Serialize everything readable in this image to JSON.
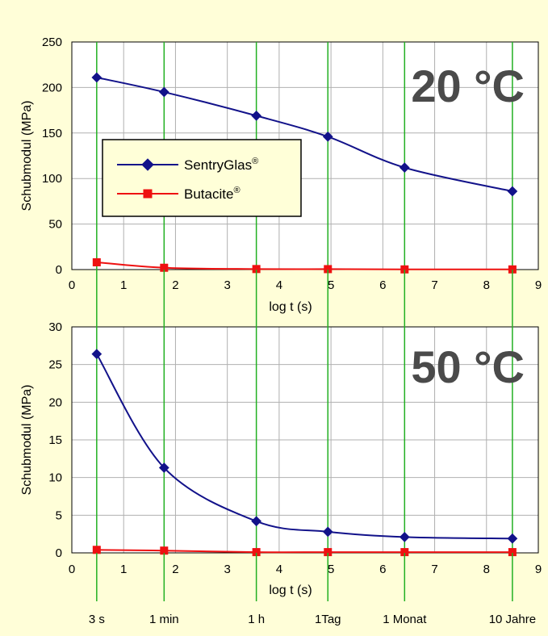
{
  "colors": {
    "background": "#fffed8",
    "plot_area": "#ffffff",
    "grid": "#b0b0b0",
    "time_markers": "#22b022",
    "sentryglas": "#12128a",
    "butacite": "#ee1111",
    "temperature_label": "#4a4a4a"
  },
  "legend": {
    "entries": [
      {
        "name": "SentryGlas",
        "sup": "®",
        "color": "#12128a",
        "marker": "diamond"
      },
      {
        "name": "Butacite",
        "sup": "®",
        "color": "#ee1111",
        "marker": "square"
      }
    ]
  },
  "time_markers": {
    "positions": [
      0.48,
      1.78,
      3.56,
      4.94,
      6.42,
      8.5
    ],
    "labels": [
      "3 s",
      "1 min",
      "1 h",
      "1Tag",
      "1 Monat",
      "10 Jahre"
    ]
  },
  "chart_data": [
    {
      "type": "line",
      "annotation": "20 °C",
      "xlabel": "log t (s)",
      "ylabel": "Schubmodul (MPa)",
      "xlim": [
        0,
        9
      ],
      "ylim": [
        0,
        250
      ],
      "xticks": [
        0,
        1,
        2,
        3,
        4,
        5,
        6,
        7,
        8,
        9
      ],
      "yticks": [
        0,
        50,
        100,
        150,
        200,
        250
      ],
      "grid": true,
      "legend_position": "center-left",
      "series": [
        {
          "name": "SentryGlas®",
          "marker": "diamond",
          "color": "#12128a",
          "x": [
            0.48,
            1.78,
            3.56,
            4.94,
            6.42,
            8.5
          ],
          "y": [
            211,
            195,
            169,
            146,
            112,
            86
          ]
        },
        {
          "name": "Butacite®",
          "marker": "square",
          "color": "#ee1111",
          "x": [
            0.48,
            1.78,
            3.56,
            4.94,
            6.42,
            8.5
          ],
          "y": [
            8,
            2,
            0.6,
            0.5,
            0.2,
            0.2
          ]
        }
      ]
    },
    {
      "type": "line",
      "annotation": "50 °C",
      "xlabel": "log t (s)",
      "ylabel": "Schubmodul (MPa)",
      "xlim": [
        0,
        9
      ],
      "ylim": [
        0,
        30
      ],
      "xticks": [
        0,
        1,
        2,
        3,
        4,
        5,
        6,
        7,
        8,
        9
      ],
      "yticks": [
        0,
        5,
        10,
        15,
        20,
        25,
        30
      ],
      "grid": true,
      "series": [
        {
          "name": "SentryGlas®",
          "marker": "diamond",
          "color": "#12128a",
          "x": [
            0.48,
            1.78,
            3.56,
            4.94,
            6.42,
            8.5
          ],
          "y": [
            26.4,
            11.3,
            4.2,
            2.8,
            2.1,
            1.9
          ]
        },
        {
          "name": "Butacite®",
          "marker": "square",
          "color": "#ee1111",
          "x": [
            0.48,
            1.78,
            3.56,
            4.94,
            6.42,
            8.5
          ],
          "y": [
            0.4,
            0.3,
            0.1,
            0.1,
            0.1,
            0.1
          ]
        }
      ]
    }
  ]
}
